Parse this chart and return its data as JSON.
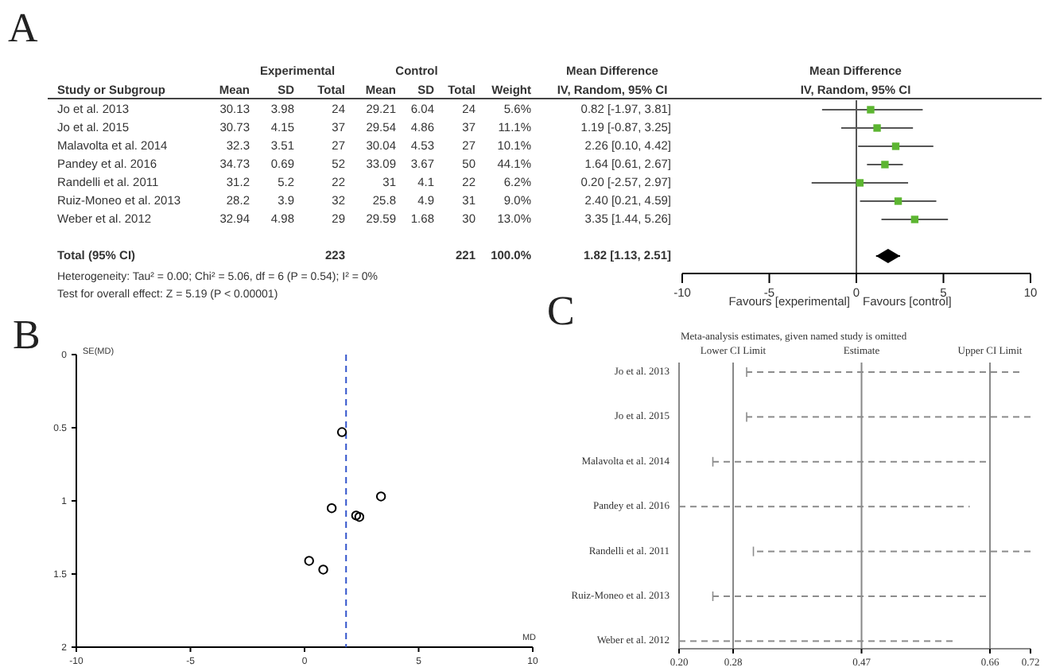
{
  "chart_data": [
    {
      "type": "other",
      "categories": [
        "Jo et al. 2013",
        "Jo et al. 2015",
        "Malavolta et al. 2014",
        "Pandey et al. 2016",
        "Randelli et al. 2011",
        "Ruiz-Moneo et al. 2013",
        "Weber et al. 2012",
        null,
        "Total (95% CI)"
      ],
      "series": [
        {
          "name": "Mean",
          "values": [
            30.13,
            30.73,
            32.3,
            34.73,
            31.2,
            28.2,
            32.94,
            null,
            null
          ]
        },
        {
          "name": "SD",
          "values": [
            3.98,
            4.15,
            3.51,
            0.69,
            5.2,
            3.9,
            4.98,
            null,
            null
          ]
        },
        {
          "name": "Total",
          "values": [
            24,
            37,
            27,
            52,
            22,
            32,
            29,
            null,
            223
          ]
        },
        {
          "name": "Mean",
          "values": [
            29.21,
            29.54,
            30.04,
            33.09,
            31,
            25.8,
            29.59,
            null,
            null
          ]
        },
        {
          "name": "SD",
          "values": [
            6.04,
            4.86,
            4.53,
            3.67,
            4.1,
            4.9,
            1.68,
            null,
            null
          ]
        },
        {
          "name": "Total",
          "values": [
            24,
            37,
            27,
            50,
            22,
            31,
            30,
            null,
            221
          ]
        },
        {
          "name": "Weight",
          "values": [
            5.6,
            11.1,
            10.1,
            44.1,
            6.2,
            9.0,
            13.0,
            null,
            100.0
          ],
          "value_labels": [
            "5.6%",
            "11.1%",
            "10.1%",
            "44.1%",
            "6.2%",
            "9.0%",
            "13.0%",
            null,
            "100.0%"
          ]
        },
        {
          "name": "IV, Random, 95% CI",
          "values": [
            0.82,
            1.19,
            2.26,
            1.64,
            0.2,
            2.4,
            3.35,
            null,
            1.82
          ],
          "value_labels": [
            "0.82 [-1.97, 3.81]",
            "1.19 [-0.87, 3.25]",
            "2.26 [0.10, 4.42]",
            "1.64 [0.61, 2.67]",
            "0.20 [-2.57, 2.97]",
            "2.40 [0.21, 4.59]",
            "3.35 [1.44, 5.26]",
            null,
            "1.82 [1.13, 2.51]"
          ]
        }
      ],
      "data_labels": true,
      "annotations": [
        "A",
        "Experimental",
        "Control",
        "Study or Subgroup",
        "Mean Difference",
        "Heterogeneity: Tau² = 0.00; Chi² = 5.06, df = 6 (P = 0.54); I² = 0%",
        "Test for overall effect: Z = 5.19 (P < 0.00001)"
      ]
    },
    {
      "type": "scatter",
      "orientation": "horizontal",
      "title": "Mean Difference",
      "subtitle": "IV, Random, 95% CI",
      "categories": [
        null,
        null,
        null,
        null,
        null,
        null,
        null,
        null,
        null
      ],
      "series": [
        {
          "color": "#5cb531",
          "marker": "square",
          "values": [
            0.82,
            1.19,
            2.26,
            1.64,
            0.2,
            2.4,
            3.35,
            null,
            null
          ],
          "errors": [
            [
              -1.97,
              3.81
            ],
            [
              -0.87,
              3.25
            ],
            [
              0.1,
              4.42
            ],
            [
              0.61,
              2.67
            ],
            [
              -2.57,
              2.97
            ],
            [
              0.21,
              4.59
            ],
            [
              1.44,
              5.26
            ],
            null,
            null
          ]
        },
        {
          "color": "#000000",
          "marker": "diamond",
          "values": [
            null,
            null,
            null,
            null,
            null,
            null,
            null,
            null,
            1.82
          ],
          "errors": [
            null,
            null,
            null,
            null,
            null,
            null,
            null,
            null,
            [
              1.13,
              2.51
            ]
          ]
        }
      ],
      "xlim": [
        -10,
        10
      ],
      "xticks": [
        -10,
        -5,
        0,
        5,
        10
      ],
      "tick_labels": "x",
      "ref_lines": [
        {
          "axis": "x",
          "value": 0,
          "color": "#555555"
        }
      ],
      "annotations": [
        "Favours [experimental]",
        "Favours [control]"
      ]
    },
    {
      "type": "scatter",
      "x": [
        0.82,
        1.19,
        2.26,
        1.64,
        0.2,
        2.4,
        3.35
      ],
      "values": [
        1.47,
        1.05,
        1.1,
        0.53,
        1.41,
        1.11,
        0.97
      ],
      "color": "#000000",
      "marker": "circle",
      "xlim": [
        -10,
        10
      ],
      "xticks": [
        -10,
        -5,
        0,
        5,
        10
      ],
      "ylim": [
        2,
        0
      ],
      "yticks": [
        0,
        0.5,
        1,
        1.5,
        2
      ],
      "xlabel": "MD",
      "ylabel": "SE(MD)",
      "ref_lines": [
        {
          "axis": "x",
          "value": 1.82,
          "color": "#3355cc",
          "line_style": "dashed"
        }
      ],
      "annotations": [
        "B"
      ]
    },
    {
      "type": "bar",
      "orientation": "horizontal",
      "title": "Meta-analysis estimates, given named study is omitted",
      "categories": [
        "Jo et al. 2013",
        "Jo et al. 2015",
        "Malavolta et al. 2014",
        "Pandey et al. 2016",
        "Randelli et al. 2011",
        "Ruiz-Moneo et al. 2013",
        "Weber et al. 2012"
      ],
      "base": [
        0.3,
        0.3,
        0.25,
        0.2,
        0.31,
        0.25,
        0.2
      ],
      "values": [
        0.41,
        0.42,
        0.41,
        0.43,
        0.41,
        0.41,
        0.41
      ],
      "color": "#8c8c8c",
      "line_style": "dashed",
      "xlim": [
        0.2,
        0.72
      ],
      "xticks": [
        {
          "value": 0.2,
          "label": "0.20"
        },
        0.28,
        0.47,
        0.66,
        0.72
      ],
      "ref_lines": [
        {
          "axis": "x",
          "value": 0.28,
          "label": "Lower CI Limit",
          "color": "#888888"
        },
        {
          "axis": "x",
          "value": 0.47,
          "label": "Estimate",
          "color": "#888888"
        },
        {
          "axis": "x",
          "value": 0.66,
          "label": "Upper CI Limit",
          "color": "#888888"
        }
      ],
      "annotations": [
        "C"
      ]
    }
  ]
}
